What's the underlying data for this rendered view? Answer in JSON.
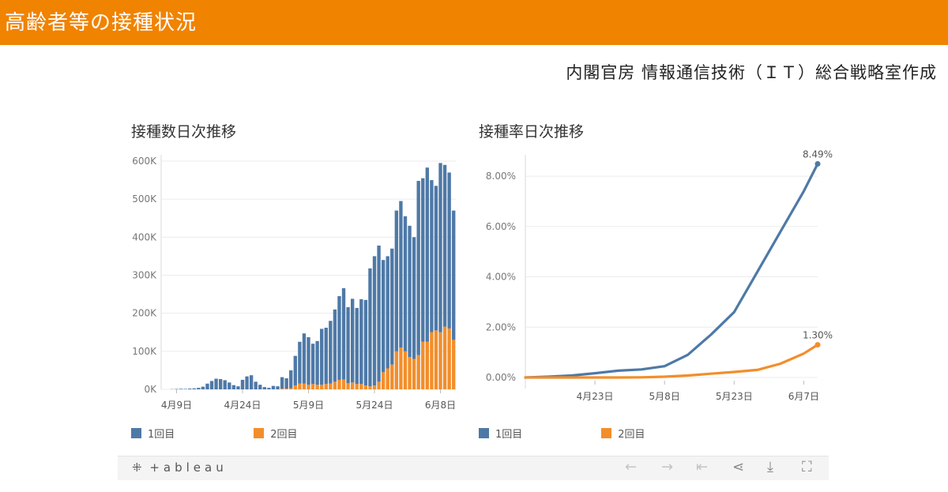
{
  "header": {
    "title": "高齢者等の接種状況"
  },
  "credit": "内閣官房 情報通信技術（ＩＴ）総合戦略室作成",
  "chart_data": [
    {
      "type": "bar",
      "stacked": true,
      "title": "接種数日次推移",
      "xlabel": "",
      "ylabel": "",
      "ylim": [
        0,
        600000
      ],
      "yticks": [
        0,
        100000,
        200000,
        300000,
        400000,
        500000,
        600000
      ],
      "ytick_labels": [
        "0K",
        "100K",
        "200K",
        "300K",
        "400K",
        "500K",
        "600K"
      ],
      "xticks": [
        {
          "index": 3,
          "label": "4月9日"
        },
        {
          "index": 18,
          "label": "4月24日"
        },
        {
          "index": 33,
          "label": "5月9日"
        },
        {
          "index": 48,
          "label": "5月24日"
        },
        {
          "index": 63,
          "label": "6月8日"
        }
      ],
      "grid": true,
      "legend_position": "bottom",
      "series": [
        {
          "name": "1回目",
          "color": "#4e79a7",
          "values": [
            0,
            0,
            500,
            1000,
            1500,
            1200,
            2000,
            2500,
            4000,
            7000,
            15000,
            22000,
            28000,
            27000,
            24000,
            18000,
            11000,
            8000,
            25000,
            34000,
            37000,
            20000,
            12000,
            6000,
            4000,
            9000,
            8000,
            30000,
            27000,
            47000,
            78000,
            110000,
            132000,
            125000,
            106000,
            115000,
            147000,
            148000,
            165000,
            190000,
            220000,
            240000,
            200000,
            220000,
            200000,
            223000,
            225000,
            310000,
            340000,
            358000,
            295000,
            295000,
            305000,
            370000,
            385000,
            355000,
            345000,
            320000,
            458000,
            430000,
            458000,
            400000,
            380000,
            445000,
            425000,
            410000,
            340000
          ]
        },
        {
          "name": "2回目",
          "color": "#f28e2b",
          "values": [
            0,
            0,
            0,
            0,
            0,
            0,
            0,
            0,
            0,
            0,
            0,
            0,
            0,
            0,
            0,
            0,
            0,
            0,
            0,
            0,
            0,
            0,
            0,
            0,
            0,
            0,
            0,
            2000,
            2000,
            3000,
            10000,
            15000,
            15000,
            12000,
            14000,
            12000,
            12000,
            14000,
            15000,
            20000,
            25000,
            26000,
            16000,
            18000,
            14000,
            14000,
            10000,
            8000,
            10000,
            20000,
            45000,
            55000,
            65000,
            100000,
            110000,
            100000,
            85000,
            80000,
            90000,
            125000,
            125000,
            150000,
            155000,
            150000,
            165000,
            160000,
            130000
          ]
        }
      ]
    },
    {
      "type": "line",
      "title": "接種率日次推移",
      "xlabel": "",
      "ylabel": "",
      "xlim": [
        "2021-04-08",
        "2021-06-10"
      ],
      "ylim": [
        0,
        8.6
      ],
      "yticks": [
        0,
        2,
        4,
        6,
        8
      ],
      "ytick_labels": [
        "0.00%",
        "2.00%",
        "4.00%",
        "6.00%",
        "8.00%"
      ],
      "xticks": [
        {
          "x": "2021-04-23",
          "label": "4月23日"
        },
        {
          "x": "2021-05-08",
          "label": "5月8日"
        },
        {
          "x": "2021-05-23",
          "label": "5月23日"
        },
        {
          "x": "2021-06-07",
          "label": "6月7日"
        }
      ],
      "grid": true,
      "legend_position": "bottom",
      "end_labels": [
        "8.49%",
        "1.30%"
      ],
      "series": [
        {
          "name": "1回目",
          "color": "#4e79a7",
          "x": [
            "2021-04-08",
            "2021-04-13",
            "2021-04-18",
            "2021-04-23",
            "2021-04-28",
            "2021-05-03",
            "2021-05-08",
            "2021-05-13",
            "2021-05-18",
            "2021-05-23",
            "2021-05-28",
            "2021-06-02",
            "2021-06-07",
            "2021-06-10"
          ],
          "y": [
            0.0,
            0.03,
            0.08,
            0.17,
            0.27,
            0.32,
            0.45,
            0.9,
            1.7,
            2.6,
            4.2,
            5.8,
            7.4,
            8.49
          ]
        },
        {
          "name": "2回目",
          "color": "#f28e2b",
          "x": [
            "2021-04-08",
            "2021-04-13",
            "2021-04-18",
            "2021-04-23",
            "2021-04-28",
            "2021-05-03",
            "2021-05-08",
            "2021-05-13",
            "2021-05-18",
            "2021-05-23",
            "2021-05-28",
            "2021-06-02",
            "2021-06-07",
            "2021-06-10"
          ],
          "y": [
            0,
            0,
            0,
            0,
            0,
            0.005,
            0.03,
            0.08,
            0.15,
            0.22,
            0.3,
            0.55,
            0.95,
            1.3
          ]
        }
      ]
    }
  ],
  "toolbar": {
    "logo": "+ableau",
    "icons": [
      "tableau-logo-icon",
      "undo-icon",
      "redo-icon",
      "revert-icon",
      "share-icon",
      "download-icon",
      "fullscreen-icon"
    ]
  }
}
